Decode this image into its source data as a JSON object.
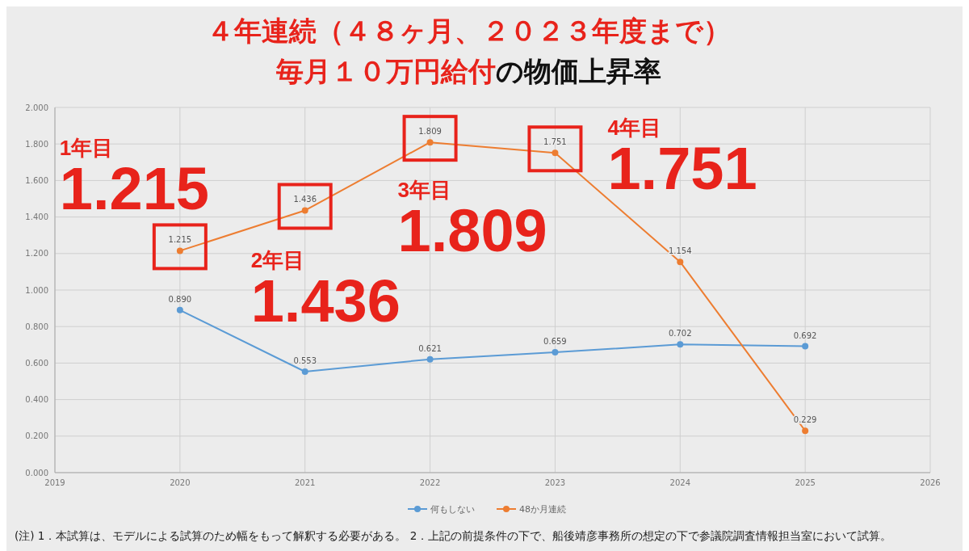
{
  "chart_data": {
    "type": "line",
    "title": "４年連続（４８ヶ月、２０２３年度まで）",
    "subtitle": "毎月１０万円給付の物価上昇率",
    "x": [
      2020,
      2021,
      2022,
      2023,
      2024,
      2025
    ],
    "series": [
      {
        "name": "何もしない",
        "color": "#5b9bd5",
        "values": [
          0.89,
          0.553,
          0.621,
          0.659,
          0.702,
          0.692
        ],
        "value_labels": [
          "0.890",
          "0.553",
          "0.621",
          "0.659",
          "0.702",
          "0.692"
        ]
      },
      {
        "name": "48か月連続",
        "color": "#ed7d31",
        "values": [
          1.215,
          1.436,
          1.809,
          1.751,
          1.154,
          0.229
        ],
        "value_labels": [
          "1.215",
          "1.436",
          "1.809",
          "1.751",
          "1.154",
          "0.229"
        ]
      }
    ],
    "xlim": [
      2019,
      2026
    ],
    "xticks": [
      2019,
      2020,
      2021,
      2022,
      2023,
      2024,
      2025,
      2026
    ],
    "ylim": [
      0,
      2
    ],
    "yticks": [
      {
        "value": 0,
        "label": "0.000"
      },
      {
        "value": 0.2,
        "label": "0.200"
      },
      {
        "value": 0.4,
        "label": "0.400"
      },
      {
        "value": 0.6,
        "label": "0.600"
      },
      {
        "value": 0.8,
        "label": "0.800"
      },
      {
        "value": 1,
        "label": "1.000"
      },
      {
        "value": 1.2,
        "label": "1.200"
      },
      {
        "value": 1.4,
        "label": "1.400"
      },
      {
        "value": 1.6,
        "label": "1.600"
      },
      {
        "value": 1.8,
        "label": "1.800"
      },
      {
        "value": 2,
        "label": "2.000"
      }
    ],
    "grid": true,
    "legend": "bottom",
    "marker": "circle",
    "line_style": "solid",
    "annotations": [
      "1年目",
      "2年目",
      "3年目",
      "4年目",
      {
        "text": "1.215",
        "x": 2020,
        "y": 1.215
      },
      {
        "text": "1.436",
        "x": 2021,
        "y": 1.436
      },
      {
        "text": "1.809",
        "x": 2022,
        "y": 1.809
      },
      {
        "text": "1.751",
        "x": 2023,
        "y": 1.751
      },
      "(注) 1．本試算は、モデルによる試算のため幅をもって解釈する必要がある。 2．上記の前提条件の下で、船後靖彦事務所の想定の下で参議院調査情報担当室において試算。"
    ]
  }
}
